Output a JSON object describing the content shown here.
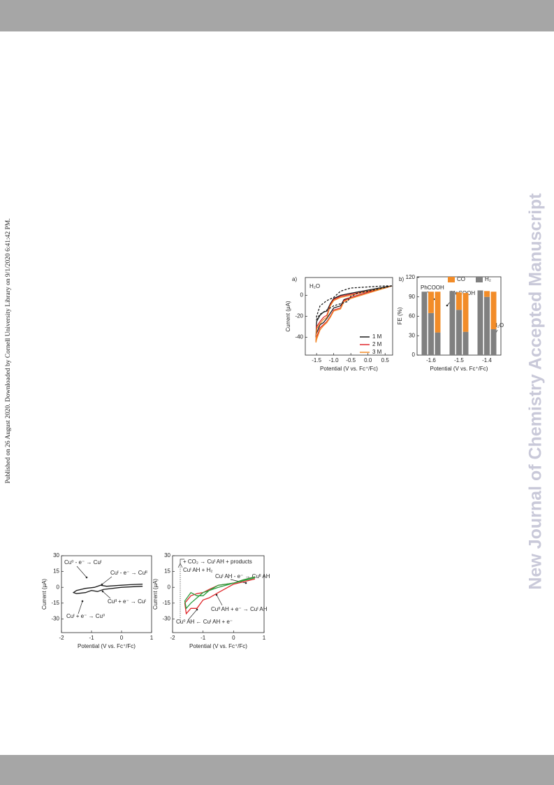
{
  "side_note": "Published on 26 August 2020. Downloaded by Cornell University Library on 9/1/2020 6:41:42 PM.",
  "watermark": "New Journal of Chemistry Accepted Manuscript",
  "chart_data": [
    {
      "type": "line",
      "panel": "a)",
      "xlabel": "Potential (V vs. Fc⁺/Fc)",
      "ylabel": "Current (μA)",
      "xlim": [
        -1.83,
        0.72
      ],
      "ylim": [
        -57,
        17
      ],
      "xticks": [
        -1.5,
        {
          "value": -1,
          "label": "-1.0"
        },
        -0.5,
        {
          "value": 0,
          "label": "0.0"
        },
        0.5
      ],
      "yticks": [
        0,
        -20,
        -40
      ],
      "annotations": [
        "H₂O"
      ],
      "series": [
        {
          "name": "1 M",
          "color": "#1a1a1a",
          "x": [
            0.7,
            0.5,
            0,
            -0.5,
            -0.7,
            -0.8,
            -1.0,
            -1.1,
            -1.2,
            -1.3,
            -1.4,
            -1.5,
            -1.52,
            -1.5,
            -1.4,
            -1.3,
            -1.2,
            -1.1,
            -1.0,
            -0.8,
            -0.5,
            0,
            0.5,
            0.7
          ],
          "values": [
            9,
            7,
            3,
            -2,
            -4,
            -10,
            -12,
            -17,
            -22,
            -26,
            -28,
            -36,
            -40,
            -25,
            -19,
            -16,
            -15,
            -8,
            -3,
            0,
            2,
            5,
            8,
            9
          ]
        },
        {
          "name": "2 M",
          "color": "#e0262a",
          "x": [
            0.7,
            0.5,
            0,
            -0.5,
            -0.7,
            -0.8,
            -1.0,
            -1.1,
            -1.2,
            -1.3,
            -1.4,
            -1.5,
            -1.52,
            -1.5,
            -1.4,
            -1.3,
            -1.2,
            -1.1,
            -1.0,
            -0.8,
            -0.5,
            0,
            0.5,
            0.7
          ],
          "values": [
            9,
            7,
            3,
            -2,
            -5,
            -12,
            -14,
            -20,
            -25,
            -28,
            -31,
            -40,
            -44,
            -30,
            -25,
            -21,
            -19,
            -9,
            -4,
            -1,
            1,
            4,
            7,
            9
          ]
        },
        {
          "name": "3 M",
          "color": "#f28c28",
          "x": [
            0.7,
            0.5,
            0,
            -0.5,
            -0.7,
            -0.8,
            -1.0,
            -1.1,
            -1.2,
            -1.3,
            -1.4,
            -1.5,
            -1.52,
            -1.5,
            -1.4,
            -1.3,
            -1.2,
            -1.1,
            -1.0,
            -0.8,
            -0.5,
            0,
            0.5,
            0.7
          ],
          "values": [
            9,
            7,
            2,
            -3,
            -6,
            -13,
            -15,
            -21,
            -26,
            -29,
            -33,
            -42,
            -45,
            -32,
            -27,
            -23,
            -21,
            -10,
            -5,
            -2,
            0,
            4,
            7,
            9
          ]
        },
        {
          "color": "#1a1a1a",
          "dashed": true,
          "x": [
            0.7,
            0.3,
            0,
            -0.3,
            -0.5,
            -0.6,
            -0.8,
            -1.0,
            -1.2,
            -1.4,
            -1.5,
            -1.5,
            -1.4,
            -1.2,
            -1.0,
            -0.8,
            -0.5,
            0,
            0.5,
            0.7
          ],
          "values": [
            9,
            6,
            4,
            2,
            -1,
            -6,
            -8,
            -10,
            -14,
            -18,
            -23,
            -20,
            -10,
            -5,
            -2,
            4,
            7,
            8,
            9,
            9
          ]
        }
      ]
    },
    {
      "type": "bar",
      "panel": "b)",
      "xlabel": "Potential (V vs. Fc⁺/Fc)",
      "ylabel": "FE (%)",
      "categories": [
        "-1.6",
        "-1.5",
        "-1.4"
      ],
      "ylim": [
        0,
        121
      ],
      "yticks": [
        0,
        30,
        60,
        90,
        120
      ],
      "annotations": [
        "PhCOOH",
        "MeCOOH",
        "H₂O"
      ],
      "series": [
        {
          "name": "CO",
          "color": "#f28c28",
          "values": [
            [
              0,
              33,
              63
            ],
            [
              0,
              27,
              60
            ],
            [
              0,
              9,
              58
            ]
          ]
        },
        {
          "name": "H₂",
          "color": "#808080",
          "values": [
            [
              98,
              65,
              35
            ],
            [
              99,
              70,
              36
            ],
            [
              100,
              90,
              40
            ]
          ]
        }
      ]
    },
    {
      "type": "line",
      "xlabel": "Potential (V vs. Fc⁺/Fc)",
      "ylabel": "Current (μA)",
      "xlim": [
        -2,
        1
      ],
      "ylim": [
        -43,
        30
      ],
      "xticks": [
        -2,
        -1,
        0,
        1
      ],
      "yticks": [
        30,
        15,
        0,
        -15,
        -30
      ],
      "annotations": [
        "Cu⁰ - e⁻ → Cuᴵ",
        "Cuᴵ - e⁻ → Cuᴵᴵ",
        "Cuᴵᴵ + e⁻ → Cuᴵ",
        "Cuᴵ + e⁻ → Cu⁰"
      ],
      "series": [
        {
          "color": "#1a1a1a",
          "x": [
            0.7,
            0.3,
            0,
            -0.5,
            -0.7,
            -0.9,
            -1.2,
            -1.5,
            -1.6,
            -1.5,
            -1.2,
            -1.0,
            -0.8,
            -0.6,
            0,
            0.7
          ],
          "values": [
            3,
            2.5,
            2,
            1,
            2,
            0,
            -1,
            -3,
            -5,
            -6,
            -5,
            -3,
            -4,
            -2,
            0,
            1
          ]
        }
      ]
    },
    {
      "type": "line",
      "xlabel": "Potential (V vs. Fc⁺/Fc)",
      "ylabel": "Current (μA)",
      "xlim": [
        -2,
        1
      ],
      "ylim": [
        -43,
        30
      ],
      "xticks": [
        -2,
        -1,
        0,
        1
      ],
      "yticks": [
        30,
        15,
        0,
        -15,
        -30
      ],
      "annotations": [
        "+ CO₂ → Cuᴵ AH + products",
        "Cuᴵ AH + H₂",
        "Cuᴵ AH - e⁻ → Cuᴵᴵ AH",
        "Cuᴵᴵ AH + e⁻ → Cuᴵ AH",
        "Cu⁰ AH ← Cuᴵ AH + e⁻"
      ],
      "series": [
        {
          "color": "#e0262a",
          "x": [
            0.7,
            0.3,
            0,
            -0.5,
            -0.8,
            -1.0,
            -1.2,
            -1.4,
            -1.6,
            -1.55,
            -1.4,
            -1.2,
            -1.0,
            -0.8,
            -0.5,
            0,
            0.7
          ],
          "values": [
            10,
            7,
            4,
            2,
            -2,
            -5,
            -6,
            -8,
            -15,
            -25,
            -20,
            -20,
            -12,
            -10,
            -5,
            3,
            8
          ]
        },
        {
          "color": "#2e9e3e",
          "x": [
            0.7,
            0.3,
            0,
            -0.5,
            -0.8,
            -1.0,
            -1.2,
            -1.4,
            -1.6,
            -1.55,
            -1.4,
            -1.2,
            -1.0,
            -0.8,
            -0.5,
            0,
            0.7
          ],
          "values": [
            10,
            7,
            4,
            2,
            -3,
            -8,
            -8,
            -5,
            -13,
            -20,
            -15,
            -10,
            -5,
            -3,
            0,
            4,
            9
          ]
        }
      ]
    }
  ]
}
